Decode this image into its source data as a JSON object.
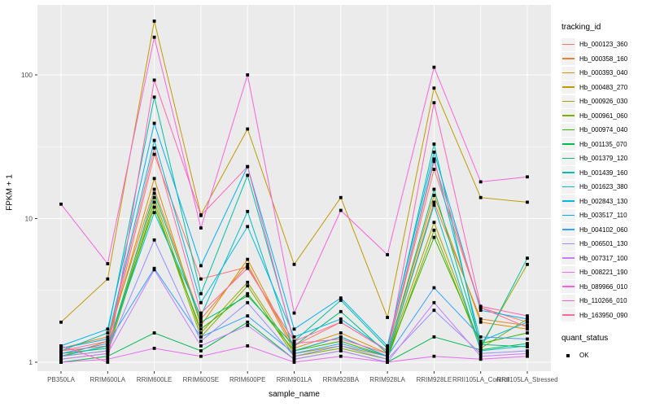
{
  "chart_data": {
    "type": "line",
    "title": "",
    "xlabel": "sample_name",
    "ylabel": "FPKM + 1",
    "y_scale": "log10",
    "ylim": [
      0.9,
      310
    ],
    "y_ticks": [
      1,
      10,
      100
    ],
    "y_minor": [
      3.162,
      31.62,
      316.2
    ],
    "grid": true,
    "legend_position": "right",
    "point_shape": "square",
    "point_color": "#000000",
    "categories": [
      "PB350LA",
      "RRIM600LA",
      "RRIM600LE",
      "RRIM600SE",
      "RRIM600PE",
      "RRIM901LA",
      "RRIM928BA",
      "RRIM928LA",
      "RRIM928LE",
      "RRII105LA_Control",
      "RRII105LA_Stressed"
    ],
    "series": [
      {
        "name": "Hb_000123_360",
        "color": "#F8766D",
        "values": [
          1.2,
          1.3,
          28,
          3.8,
          4.6,
          1.3,
          1.9,
          1.2,
          22,
          2.4,
          1.9
        ]
      },
      {
        "name": "Hb_000358_160",
        "color": "#EA8331",
        "values": [
          1.25,
          1.5,
          16,
          2.0,
          4.8,
          1.2,
          1.5,
          1.1,
          13,
          2.0,
          1.8
        ]
      },
      {
        "name": "Hb_000393_040",
        "color": "#D89000",
        "values": [
          1.1,
          1.4,
          19,
          1.8,
          5.2,
          1.25,
          1.6,
          1.15,
          14.5,
          1.9,
          1.7
        ]
      },
      {
        "name": "Hb_000483_270",
        "color": "#C09B00",
        "values": [
          1.9,
          3.8,
          237,
          10.6,
          42,
          4.8,
          14,
          2.05,
          81,
          14,
          13
        ]
      },
      {
        "name": "Hb_000926_030",
        "color": "#A3A500",
        "values": [
          1.1,
          1.2,
          14,
          1.6,
          3.6,
          1.15,
          1.3,
          1.1,
          9.4,
          1.3,
          4.8
        ]
      },
      {
        "name": "Hb_000961_060",
        "color": "#7CAE00",
        "values": [
          1.05,
          1.15,
          13,
          1.5,
          3.4,
          1.1,
          1.25,
          1.05,
          8.3,
          1.25,
          2.0
        ]
      },
      {
        "name": "Hb_000974_040",
        "color": "#39B600",
        "values": [
          1.1,
          1.3,
          12,
          1.7,
          3.0,
          1.2,
          1.4,
          1.1,
          7.4,
          1.35,
          1.6
        ]
      },
      {
        "name": "Hb_001135_070",
        "color": "#00BB4E",
        "values": [
          1.0,
          1.1,
          1.6,
          1.2,
          1.9,
          1.05,
          1.2,
          1.0,
          1.5,
          1.22,
          1.35
        ]
      },
      {
        "name": "Hb_001379_120",
        "color": "#00BF7D",
        "values": [
          1.15,
          1.25,
          15,
          1.9,
          2.9,
          1.3,
          2.25,
          1.15,
          16,
          1.33,
          1.28
        ]
      },
      {
        "name": "Hb_001439_160",
        "color": "#00C1A3",
        "values": [
          1.2,
          1.6,
          70,
          3.0,
          20,
          1.4,
          2.7,
          1.25,
          33,
          1.25,
          5.3
        ]
      },
      {
        "name": "Hb_001623_380",
        "color": "#00BFC4",
        "values": [
          1.1,
          1.3,
          11,
          2.1,
          11.2,
          1.2,
          1.5,
          1.1,
          12.4,
          1.2,
          1.3
        ]
      },
      {
        "name": "Hb_002843_130",
        "color": "#00BAE0",
        "values": [
          1.25,
          1.45,
          35,
          2.6,
          8.8,
          1.5,
          2.0,
          1.2,
          26,
          1.4,
          1.9
        ]
      },
      {
        "name": "Hb_003517_110",
        "color": "#00B0F6",
        "values": [
          1.3,
          1.7,
          46,
          4.7,
          23,
          1.7,
          2.8,
          1.3,
          29,
          2.3,
          2.0
        ]
      },
      {
        "name": "Hb_004102_060",
        "color": "#35A2FF",
        "values": [
          1.15,
          1.35,
          4.5,
          1.5,
          2.1,
          1.15,
          1.35,
          1.1,
          3.3,
          1.5,
          1.45
        ]
      },
      {
        "name": "Hb_006501_130",
        "color": "#9590FF",
        "values": [
          1.1,
          1.2,
          7.1,
          1.4,
          2.6,
          1.1,
          1.3,
          1.05,
          2.3,
          1.15,
          1.2
        ]
      },
      {
        "name": "Hb_007317_100",
        "color": "#C77CFF",
        "values": [
          1.05,
          1.15,
          4.4,
          1.3,
          1.8,
          1.05,
          1.2,
          1.0,
          2.6,
          1.1,
          1.15
        ]
      },
      {
        "name": "Hb_008221_190",
        "color": "#E76BF3",
        "values": [
          1.0,
          1.05,
          1.25,
          1.1,
          1.3,
          1.0,
          1.1,
          1.0,
          1.1,
          1.05,
          1.1
        ]
      },
      {
        "name": "Hb_089966_010",
        "color": "#FA62DB",
        "values": [
          12.6,
          4.85,
          183,
          8.6,
          100,
          2.2,
          11.4,
          5.6,
          113,
          18,
          19.5
        ]
      },
      {
        "name": "Hb_110266_010",
        "color": "#FF62BC",
        "values": [
          1.3,
          1.0,
          92,
          10.5,
          23,
          1.35,
          1.45,
          1.15,
          64,
          2.45,
          2.1
        ]
      },
      {
        "name": "Hb_163950_090",
        "color": "#FF6A98",
        "values": [
          1.2,
          1.4,
          31,
          2.2,
          4.5,
          1.4,
          1.9,
          1.2,
          25,
          2.4,
          1.75
        ]
      }
    ],
    "legend": {
      "color_title": "tracking_id",
      "shape_title": "quant_status",
      "shape_items": [
        {
          "label": "OK"
        }
      ]
    }
  },
  "style": {
    "panel_bg": "#EBEBEB",
    "grid_color": "#FFFFFF",
    "tick_label_color": "#4D4D4D",
    "axis_title_color": "#000000",
    "legend_key_bg": "#F2F2F2"
  }
}
